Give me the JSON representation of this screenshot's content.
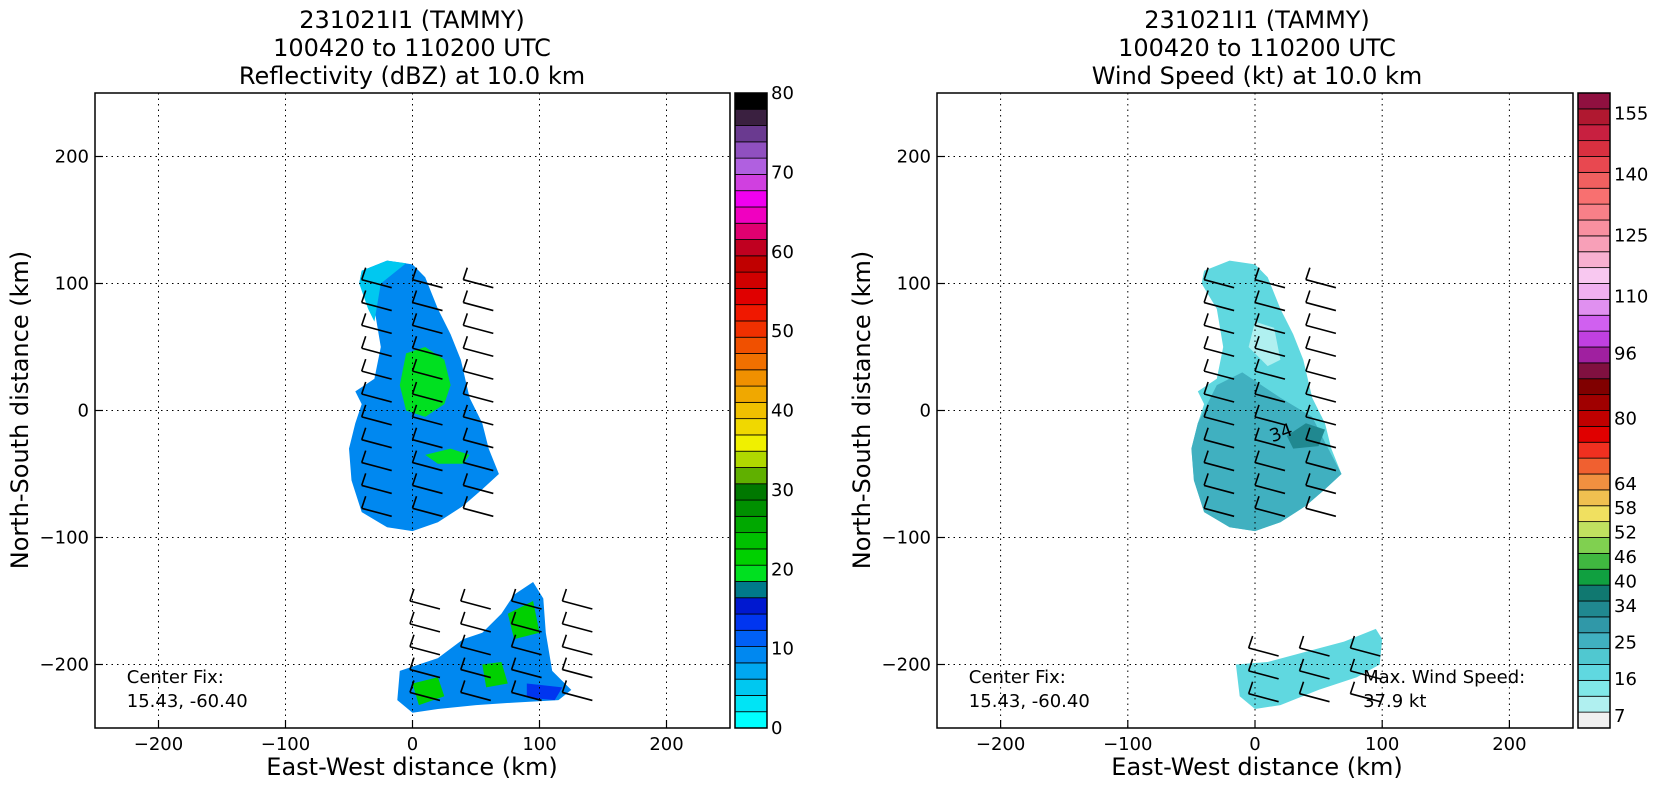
{
  "chart_data": [
    {
      "type": "heatmap",
      "title_lines": [
        "231021I1 (TAMMY)",
        "100420 to 110200 UTC",
        "Reflectivity (dBZ) at 10.0 km"
      ],
      "xlabel": "East-West distance (km)",
      "ylabel": "North-South distance (km)",
      "xlim": [
        -250,
        250
      ],
      "ylim": [
        -250,
        250
      ],
      "x_ticks": [
        -200,
        -100,
        0,
        100,
        200
      ],
      "y_ticks": [
        -200,
        -100,
        0,
        100,
        200
      ],
      "grid": true,
      "annotations": [
        {
          "text_lines": [
            "Center Fix:",
            "15.43, -60.40"
          ],
          "x": -225,
          "y": -232
        }
      ],
      "colorbar": {
        "min": 0,
        "max": 80,
        "tick_labels": [
          "0",
          "10",
          "20",
          "30",
          "40",
          "50",
          "60",
          "70",
          "80"
        ],
        "tick_values": [
          0,
          10,
          20,
          30,
          40,
          50,
          60,
          70,
          80
        ],
        "colors": [
          "#00ffff",
          "#00e4f5",
          "#00c8f0",
          "#00a8f0",
          "#0088f0",
          "#0060f5",
          "#0035f0",
          "#0018d0",
          "#007a8a",
          "#00e020",
          "#00d000",
          "#00c000",
          "#00a800",
          "#009000",
          "#007800",
          "#60b000",
          "#b0d800",
          "#f0f000",
          "#f0d800",
          "#f0c000",
          "#f0a800",
          "#f09000",
          "#f07000",
          "#f05000",
          "#f03000",
          "#f01800",
          "#e00000",
          "#d00000",
          "#c00000",
          "#c00020",
          "#e00070",
          "#f000c0",
          "#f000f0",
          "#d040e0",
          "#b060e0",
          "#9050c0",
          "#6a3a90",
          "#3a2040",
          "#000000"
        ]
      },
      "wind_barbs": "black",
      "echo_regions": [
        {
          "level": 10,
          "points": [
            [
              -40,
              110
            ],
            [
              -20,
              118
            ],
            [
              0,
              115
            ],
            [
              10,
              105
            ],
            [
              20,
              80
            ],
            [
              30,
              60
            ],
            [
              38,
              40
            ],
            [
              45,
              10
            ],
            [
              55,
              -10
            ],
            [
              60,
              -30
            ],
            [
              68,
              -50
            ],
            [
              55,
              -62
            ],
            [
              40,
              -75
            ],
            [
              20,
              -88
            ],
            [
              0,
              -95
            ],
            [
              -20,
              -92
            ],
            [
              -40,
              -80
            ],
            [
              -48,
              -55
            ],
            [
              -50,
              -30
            ],
            [
              -45,
              -10
            ],
            [
              -40,
              5
            ],
            [
              -45,
              15
            ],
            [
              -30,
              25
            ],
            [
              -25,
              50
            ],
            [
              -30,
              80
            ],
            [
              -42,
              100
            ]
          ]
        },
        {
          "level": 5,
          "points": [
            [
              -40,
              110
            ],
            [
              -20,
              118
            ],
            [
              -5,
              116
            ],
            [
              -25,
              100
            ],
            [
              -30,
              70
            ],
            [
              -35,
              80
            ],
            [
              -42,
              100
            ]
          ]
        },
        {
          "level": 20,
          "points": [
            [
              -5,
              45
            ],
            [
              10,
              50
            ],
            [
              25,
              40
            ],
            [
              30,
              20
            ],
            [
              25,
              5
            ],
            [
              10,
              -5
            ],
            [
              -5,
              0
            ],
            [
              -10,
              20
            ]
          ]
        },
        {
          "level": 20,
          "points": [
            [
              10,
              -35
            ],
            [
              30,
              -30
            ],
            [
              45,
              -35
            ],
            [
              40,
              -42
            ],
            [
              20,
              -42
            ]
          ]
        },
        {
          "level": 10,
          "points": [
            [
              -10,
              -205
            ],
            [
              5,
              -200
            ],
            [
              20,
              -195
            ],
            [
              40,
              -180
            ],
            [
              55,
              -175
            ],
            [
              70,
              -160
            ],
            [
              80,
              -145
            ],
            [
              95,
              -135
            ],
            [
              103,
              -148
            ],
            [
              105,
              -175
            ],
            [
              110,
              -205
            ],
            [
              125,
              -220
            ],
            [
              115,
              -228
            ],
            [
              80,
              -230
            ],
            [
              50,
              -232
            ],
            [
              20,
              -235
            ],
            [
              0,
              -238
            ],
            [
              -12,
              -228
            ]
          ]
        },
        {
          "level": 22,
          "points": [
            [
              75,
              -160
            ],
            [
              95,
              -150
            ],
            [
              100,
              -175
            ],
            [
              80,
              -180
            ]
          ]
        },
        {
          "level": 22,
          "points": [
            [
              0,
              -215
            ],
            [
              20,
              -210
            ],
            [
              25,
              -225
            ],
            [
              5,
              -232
            ]
          ]
        },
        {
          "level": 22,
          "points": [
            [
              55,
              -200
            ],
            [
              70,
              -198
            ],
            [
              75,
              -215
            ],
            [
              58,
              -218
            ]
          ]
        },
        {
          "level": 14,
          "points": [
            [
              90,
              -215
            ],
            [
              118,
              -218
            ],
            [
              112,
              -228
            ],
            [
              90,
              -226
            ]
          ]
        }
      ]
    },
    {
      "type": "heatmap",
      "title_lines": [
        "231021I1 (TAMMY)",
        "100420 to 110200 UTC",
        "Wind Speed (kt) at 10.0 km"
      ],
      "xlabel": "East-West distance (km)",
      "ylabel": "North-South distance (km)",
      "xlim": [
        -250,
        250
      ],
      "ylim": [
        -250,
        250
      ],
      "x_ticks": [
        -200,
        -100,
        0,
        100,
        200
      ],
      "y_ticks": [
        -200,
        -100,
        0,
        100,
        200
      ],
      "grid": true,
      "contour_label": {
        "text": "34",
        "x": 22,
        "y": -22
      },
      "annotations": [
        {
          "text_lines": [
            "Center Fix:",
            "15.43, -60.40"
          ],
          "x": -225,
          "y": -232
        },
        {
          "text_lines": [
            "Max. Wind Speed:",
            "37.9 kt"
          ],
          "x": 85,
          "y": -232
        }
      ],
      "colorbar": {
        "min": 4,
        "max": 160,
        "tick_labels": [
          "7",
          "16",
          "25",
          "34",
          "40",
          "46",
          "52",
          "58",
          "64",
          "80",
          "96",
          "110",
          "125",
          "140",
          "155"
        ],
        "tick_values": [
          7,
          16,
          25,
          34,
          40,
          46,
          52,
          58,
          64,
          80,
          96,
          110,
          125,
          140,
          155
        ],
        "colors": [
          "#f0f0f0",
          "#b0f0f0",
          "#80e8e8",
          "#60d8e0",
          "#50c8d0",
          "#40b0c0",
          "#3098a8",
          "#208890",
          "#107870",
          "#10a040",
          "#40b840",
          "#80d050",
          "#c0e060",
          "#f0e060",
          "#f0c050",
          "#f09040",
          "#f06030",
          "#f03020",
          "#e00000",
          "#c00000",
          "#a00000",
          "#800000",
          "#801040",
          "#a020a0",
          "#c040e0",
          "#d060f0",
          "#e090f0",
          "#f0b0f0",
          "#f8c8f0",
          "#f8b0d0",
          "#f8a0b8",
          "#f890a0",
          "#f88088",
          "#f87070",
          "#f06060",
          "#e84850",
          "#d83040",
          "#c82040",
          "#b01830",
          "#901040"
        ]
      },
      "wind_barbs": "black",
      "wind_regions": [
        {
          "level": 16,
          "points": [
            [
              -40,
              110
            ],
            [
              -20,
              118
            ],
            [
              0,
              115
            ],
            [
              10,
              105
            ],
            [
              20,
              80
            ],
            [
              30,
              60
            ],
            [
              38,
              40
            ],
            [
              45,
              10
            ],
            [
              55,
              -10
            ],
            [
              60,
              -30
            ],
            [
              68,
              -50
            ],
            [
              55,
              -62
            ],
            [
              40,
              -75
            ],
            [
              20,
              -88
            ],
            [
              0,
              -95
            ],
            [
              -20,
              -92
            ],
            [
              -40,
              -80
            ],
            [
              -48,
              -55
            ],
            [
              -50,
              -30
            ],
            [
              -45,
              -10
            ],
            [
              -40,
              5
            ],
            [
              -45,
              15
            ],
            [
              -30,
              25
            ],
            [
              -25,
              50
            ],
            [
              -30,
              80
            ],
            [
              -42,
              100
            ]
          ]
        },
        {
          "level": 25,
          "points": [
            [
              -30,
              20
            ],
            [
              -10,
              30
            ],
            [
              20,
              10
            ],
            [
              45,
              -5
            ],
            [
              55,
              -25
            ],
            [
              68,
              -50
            ],
            [
              55,
              -62
            ],
            [
              40,
              -75
            ],
            [
              20,
              -88
            ],
            [
              0,
              -95
            ],
            [
              -20,
              -92
            ],
            [
              -40,
              -80
            ],
            [
              -48,
              -55
            ],
            [
              -50,
              -30
            ],
            [
              -45,
              -10
            ]
          ]
        },
        {
          "level": 9,
          "points": [
            [
              0,
              70
            ],
            [
              15,
              65
            ],
            [
              20,
              40
            ],
            [
              10,
              35
            ],
            [
              -5,
              50
            ]
          ]
        },
        {
          "level": 34,
          "points": [
            [
              25,
              -20
            ],
            [
              40,
              -10
            ],
            [
              55,
              -15
            ],
            [
              50,
              -28
            ],
            [
              30,
              -30
            ]
          ]
        },
        {
          "level": 16,
          "points": [
            [
              -15,
              -200
            ],
            [
              10,
              -198
            ],
            [
              40,
              -190
            ],
            [
              70,
              -182
            ],
            [
              95,
              -172
            ],
            [
              100,
              -180
            ],
            [
              98,
              -200
            ],
            [
              80,
              -210
            ],
            [
              50,
              -220
            ],
            [
              20,
              -232
            ],
            [
              0,
              -235
            ],
            [
              -12,
              -225
            ]
          ]
        }
      ]
    }
  ]
}
